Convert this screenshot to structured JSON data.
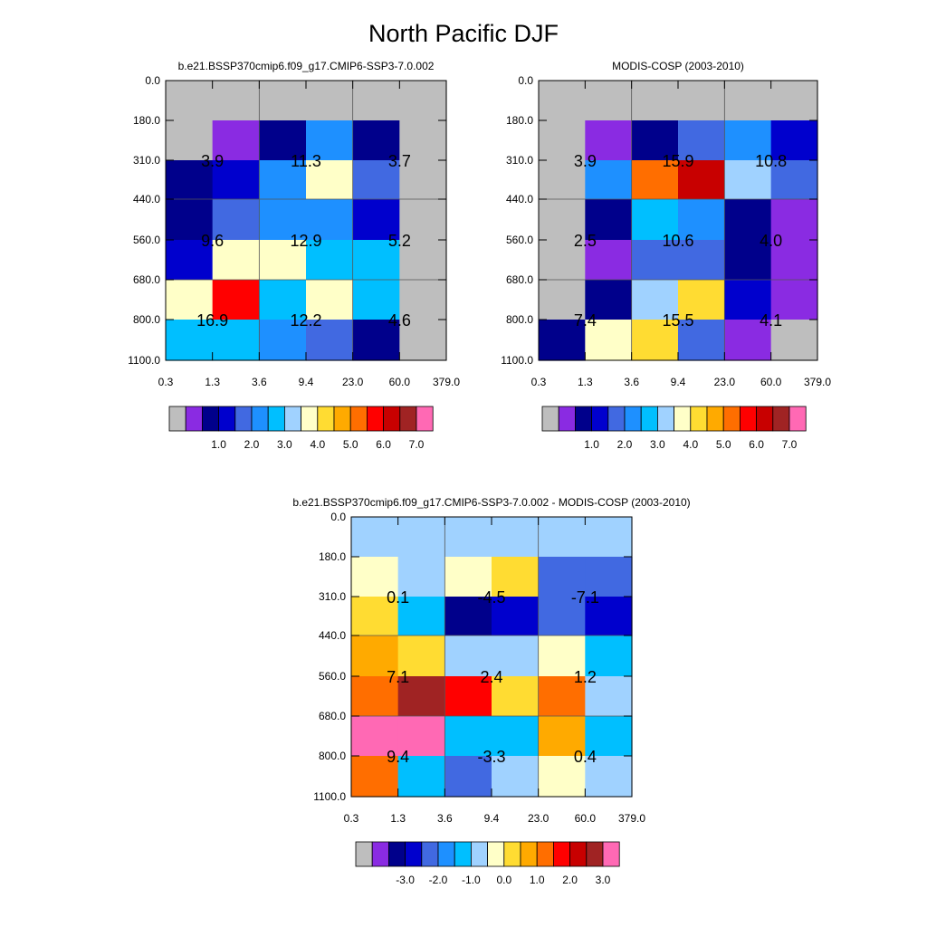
{
  "figure": {
    "title": "North Pacific DJF"
  },
  "palettes": {
    "abs": [
      "#bebebe",
      "#8a2be2",
      "#00008b",
      "#0000cd",
      "#4169e1",
      "#1e90ff",
      "#00bfff",
      "#a0d2ff",
      "#ffffc8",
      "#ffdc32",
      "#ffaa00",
      "#ff6e00",
      "#ff0000",
      "#c80000",
      "#a02323",
      "#ff69b4"
    ],
    "diff": [
      "#bebebe",
      "#8a2be2",
      "#00008b",
      "#0000cd",
      "#4169e1",
      "#1e90ff",
      "#00bfff",
      "#a0d2ff",
      "#ffffc8",
      "#ffdc32",
      "#ffaa00",
      "#ff6e00",
      "#ff0000",
      "#c80000",
      "#a02323",
      "#ff69b4"
    ]
  },
  "chart_data": [
    {
      "type": "heatmap",
      "title": "b.e21.BSSP370cmip6.f09_g17.CMIP6-SSP3-7.0.002",
      "xticks": [
        "0.3",
        "1.3",
        "3.6",
        "9.4",
        "23.0",
        "60.0",
        "379.0"
      ],
      "yticks": [
        "0.0",
        "180.0",
        "310.0",
        "440.0",
        "560.0",
        "680.0",
        "800.0",
        "1100.0"
      ],
      "cells": [
        [
          0,
          0,
          0,
          0,
          0,
          0
        ],
        [
          0,
          1,
          2,
          5,
          2,
          0
        ],
        [
          2,
          3,
          5,
          8,
          4,
          0
        ],
        [
          2,
          4,
          5,
          5,
          3,
          0
        ],
        [
          3,
          8,
          8,
          6,
          6,
          0
        ],
        [
          8,
          12,
          6,
          8,
          6,
          0
        ],
        [
          6,
          6,
          5,
          4,
          2,
          0
        ]
      ],
      "block_labels": [
        {
          "label": "3.9",
          "col": 1,
          "row": 1
        },
        {
          "label": "11.3",
          "col": 3,
          "row": 1
        },
        {
          "label": "3.7",
          "col": 5,
          "row": 1
        },
        {
          "label": "9.6",
          "col": 1,
          "row": 3
        },
        {
          "label": "12.9",
          "col": 3,
          "row": 3
        },
        {
          "label": "5.2",
          "col": 5,
          "row": 3
        },
        {
          "label": "16.9",
          "col": 1,
          "row": 5
        },
        {
          "label": "12.2",
          "col": 3,
          "row": 5
        },
        {
          "label": "4.6",
          "col": 5,
          "row": 5
        }
      ],
      "legend_labels": [
        "1.0",
        "2.0",
        "3.0",
        "4.0",
        "5.0",
        "6.0",
        "7.0"
      ]
    },
    {
      "type": "heatmap",
      "title": "MODIS-COSP (2003-2010)",
      "xticks": [
        "0.3",
        "1.3",
        "3.6",
        "9.4",
        "23.0",
        "60.0",
        "379.0"
      ],
      "yticks": [
        "0.0",
        "180.0",
        "310.0",
        "440.0",
        "560.0",
        "680.0",
        "800.0",
        "1100.0"
      ],
      "cells": [
        [
          0,
          0,
          0,
          0,
          0,
          0
        ],
        [
          0,
          1,
          2,
          4,
          5,
          3
        ],
        [
          0,
          5,
          11,
          13,
          7,
          4
        ],
        [
          0,
          2,
          6,
          5,
          2,
          1
        ],
        [
          0,
          1,
          4,
          4,
          2,
          1
        ],
        [
          0,
          2,
          7,
          9,
          3,
          1
        ],
        [
          2,
          8,
          9,
          4,
          1,
          0
        ]
      ],
      "block_labels": [
        {
          "label": "3.9",
          "col": 1,
          "row": 1
        },
        {
          "label": "15.9",
          "col": 3,
          "row": 1
        },
        {
          "label": "10.8",
          "col": 5,
          "row": 1
        },
        {
          "label": "2.5",
          "col": 1,
          "row": 3
        },
        {
          "label": "10.6",
          "col": 3,
          "row": 3
        },
        {
          "label": "4.0",
          "col": 5,
          "row": 3
        },
        {
          "label": "7.4",
          "col": 1,
          "row": 5
        },
        {
          "label": "15.5",
          "col": 3,
          "row": 5
        },
        {
          "label": "4.1",
          "col": 5,
          "row": 5
        }
      ],
      "legend_labels": [
        "1.0",
        "2.0",
        "3.0",
        "4.0",
        "5.0",
        "6.0",
        "7.0"
      ]
    },
    {
      "type": "heatmap",
      "title": "b.e21.BSSP370cmip6.f09_g17.CMIP6-SSP3-7.0.002 - MODIS-COSP (2003-2010)",
      "xticks": [
        "0.3",
        "1.3",
        "3.6",
        "9.4",
        "23.0",
        "60.0",
        "379.0"
      ],
      "yticks": [
        "0.0",
        "180.0",
        "310.0",
        "440.0",
        "560.0",
        "680.0",
        "800.0",
        "1100.0"
      ],
      "cells": [
        [
          7,
          7,
          7,
          7,
          7,
          7
        ],
        [
          8,
          7,
          8,
          9,
          4,
          4
        ],
        [
          9,
          6,
          2,
          3,
          4,
          3
        ],
        [
          10,
          9,
          7,
          7,
          8,
          6
        ],
        [
          11,
          14,
          12,
          9,
          11,
          7
        ],
        [
          15,
          15,
          6,
          6,
          10,
          6
        ],
        [
          11,
          6,
          4,
          7,
          8,
          7
        ]
      ],
      "block_labels": [
        {
          "label": "0.1",
          "col": 1,
          "row": 1
        },
        {
          "label": "-4.5",
          "col": 3,
          "row": 1
        },
        {
          "label": "-7.1",
          "col": 5,
          "row": 1
        },
        {
          "label": "7.1",
          "col": 1,
          "row": 3
        },
        {
          "label": "2.4",
          "col": 3,
          "row": 3
        },
        {
          "label": "1.2",
          "col": 5,
          "row": 3
        },
        {
          "label": "9.4",
          "col": 1,
          "row": 5
        },
        {
          "label": "-3.3",
          "col": 3,
          "row": 5
        },
        {
          "label": "0.4",
          "col": 5,
          "row": 5
        }
      ],
      "legend_labels": [
        "-3.0",
        "-2.0",
        "-1.0",
        "0.0",
        "1.0",
        "2.0",
        "3.0"
      ]
    }
  ]
}
